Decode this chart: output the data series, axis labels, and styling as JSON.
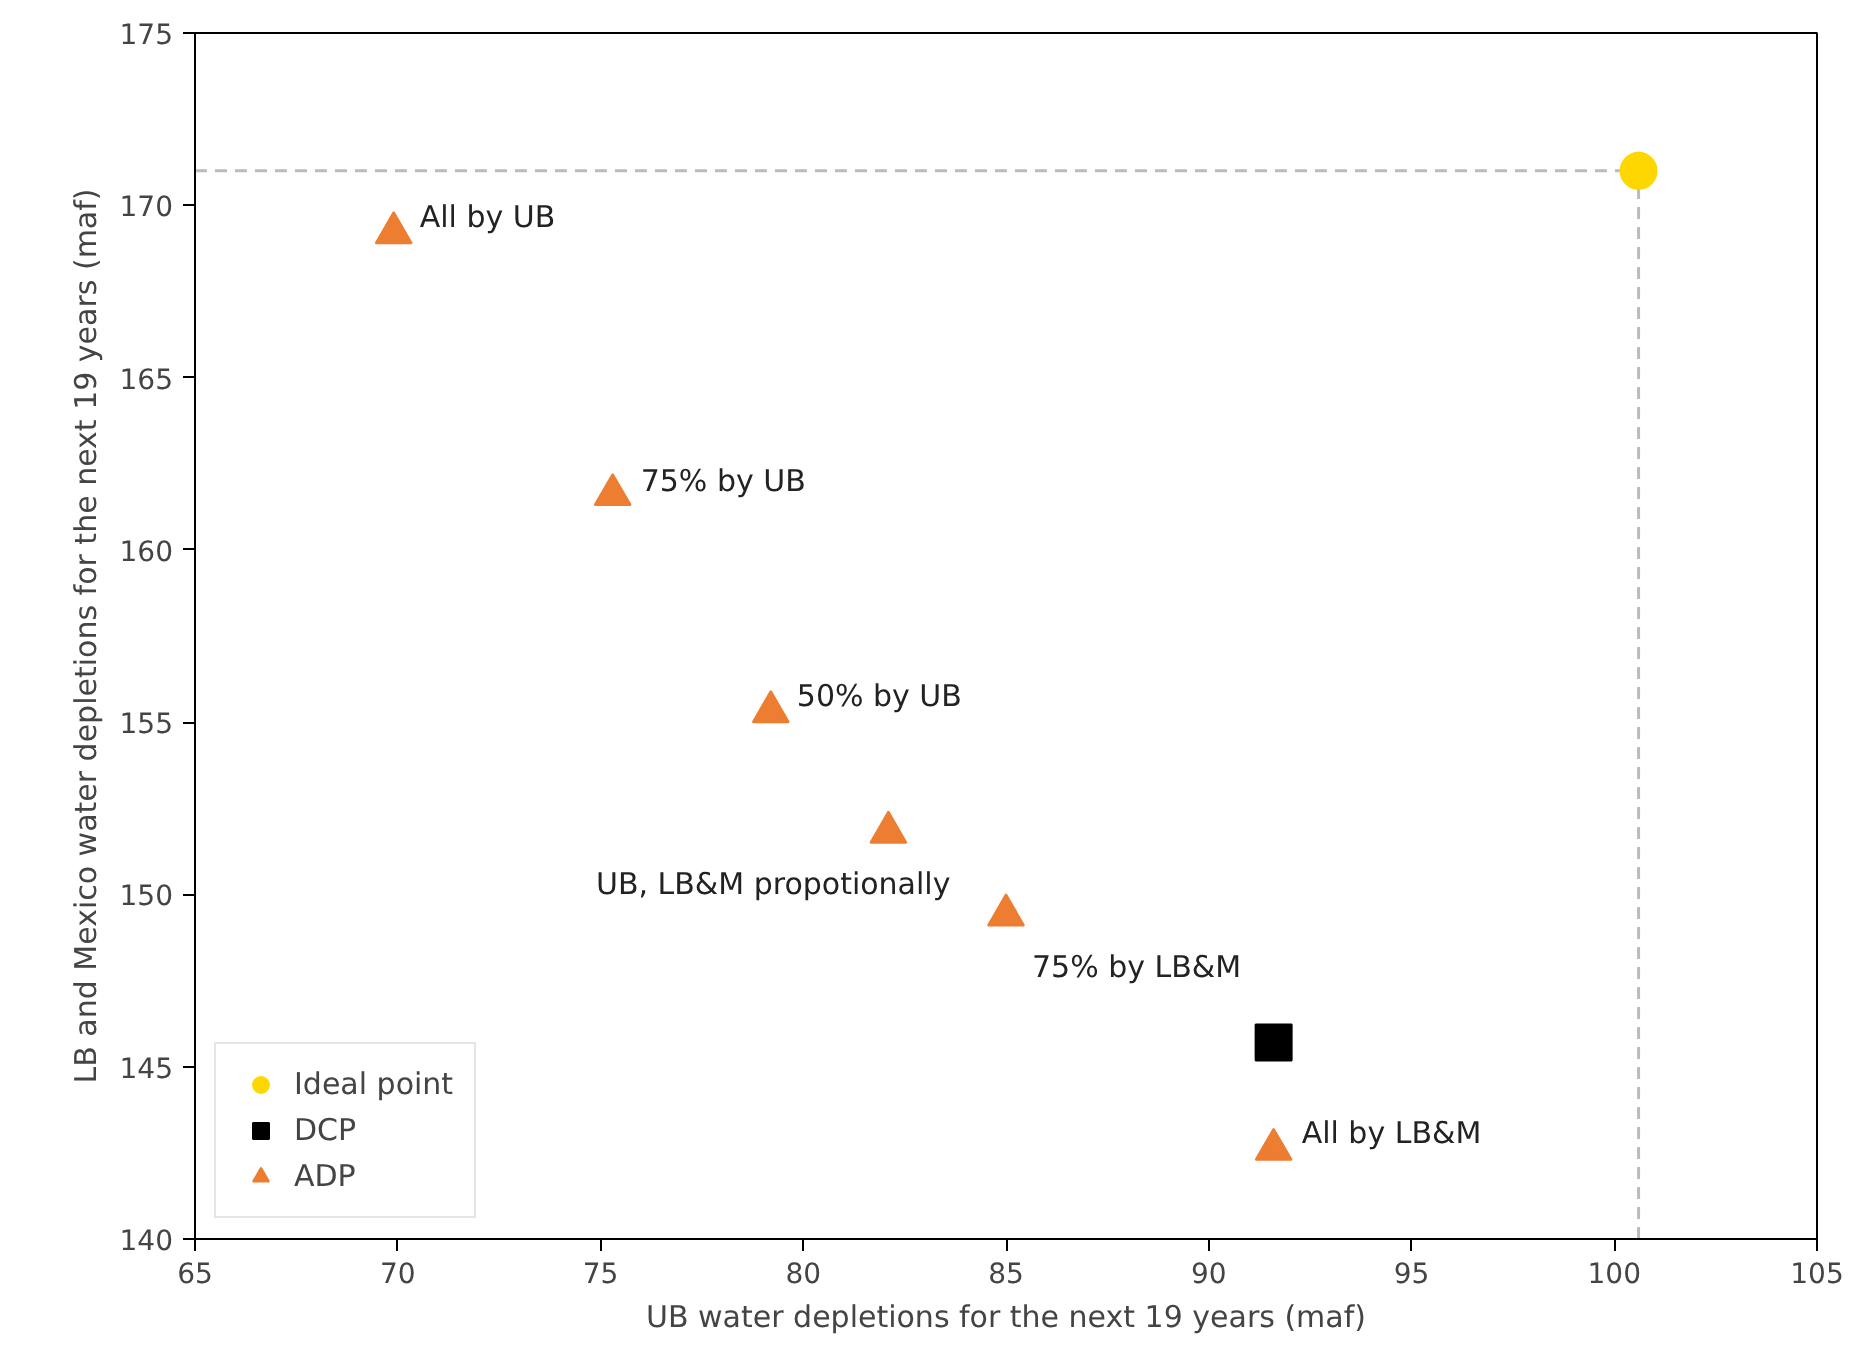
{
  "chart_data": {
    "type": "scatter",
    "xlabel": "UB water depletions for the next 19 years (maf)",
    "ylabel": "LB and Mexico water depletions for the next 19 years (maf)",
    "xlim": [
      65,
      105
    ],
    "ylim": [
      140,
      175
    ],
    "xticks": [
      65,
      70,
      75,
      80,
      85,
      90,
      95,
      100,
      105
    ],
    "yticks": [
      140,
      145,
      150,
      155,
      160,
      165,
      170,
      175
    ],
    "grid": false,
    "legend": "bottom left",
    "series": [
      {
        "name": "Ideal point",
        "color": "#ffd700",
        "marker": "circle",
        "x": [
          100.6
        ],
        "values": [
          171
        ]
      },
      {
        "name": "DCP",
        "color": "#000000",
        "marker": "square",
        "x": [
          91.6
        ],
        "values": [
          145.7
        ]
      },
      {
        "name": "ADP",
        "color": "#ed7d31",
        "marker": "triangle",
        "x": [
          69.9,
          75.3,
          79.2,
          82.1,
          85.0,
          91.6
        ],
        "values": [
          169.2,
          161.6,
          155.3,
          151.8,
          149.4,
          142.6
        ]
      }
    ],
    "ref_lines": [
      {
        "axis": "y",
        "value": 171,
        "color": "#bbbbbb",
        "line_style": "dashed"
      },
      {
        "axis": "x",
        "value": 100.6,
        "color": "#bbbbbb",
        "line_style": "dashed"
      }
    ],
    "annotations": [
      {
        "text": "All by UB",
        "x": 69.9,
        "y": 169.2
      },
      {
        "text": "75% by UB",
        "x": 75.3,
        "y": 161.6
      },
      {
        "text": "50% by UB",
        "x": 79.2,
        "y": 155.3
      },
      {
        "text": "UB, LB&M propotionally",
        "x": 82.1,
        "y": 151.8
      },
      {
        "text": "75% by LB&M",
        "x": 85.0,
        "y": 149.4
      },
      {
        "text": "All by LB&M",
        "x": 91.6,
        "y": 142.6
      }
    ]
  }
}
